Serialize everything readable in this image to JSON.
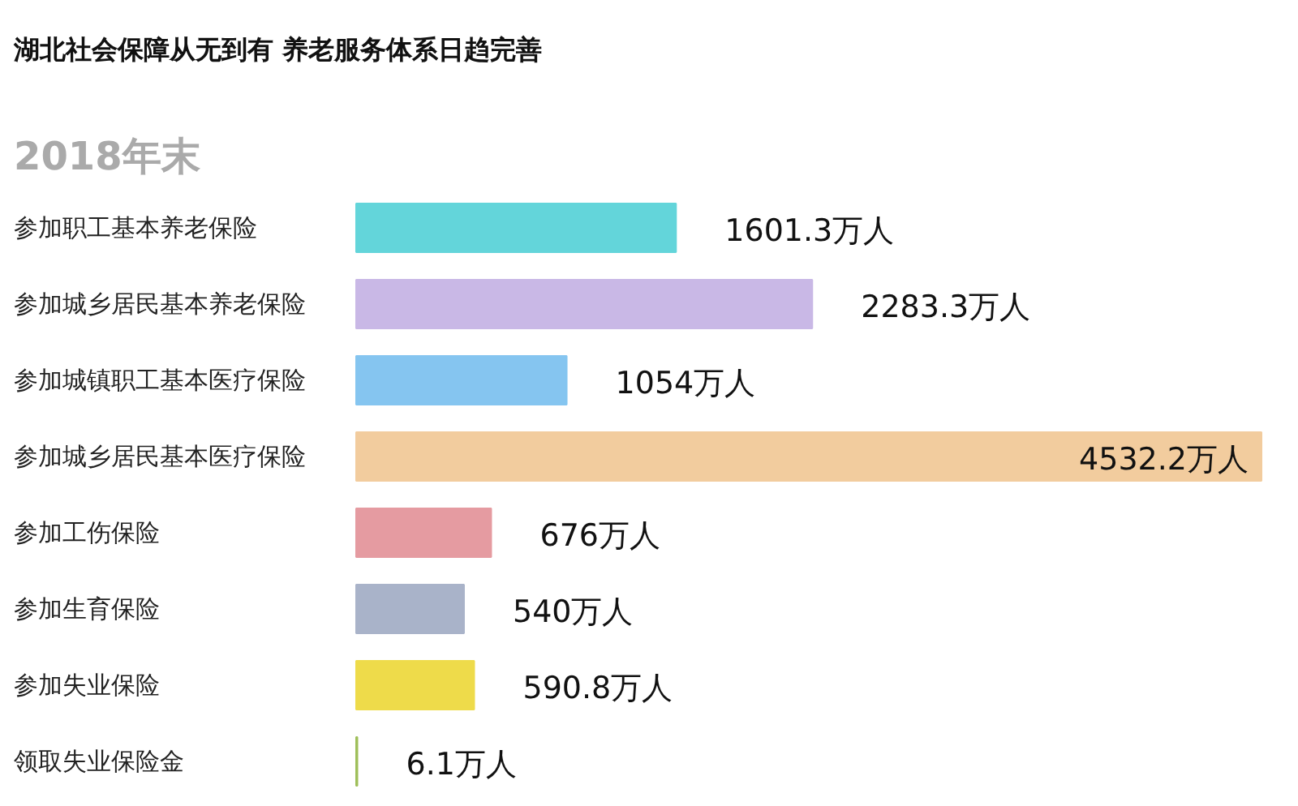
{
  "chart_data": {
    "type": "bar",
    "orientation": "horizontal",
    "title": "湖北社会保障从无到有 养老服务体系日趋完善",
    "subtitle": "2018年末",
    "categories": [
      "参加职工基本养老保险",
      "参加城乡居民基本养老保险",
      "参加城镇职工基本医疗保险",
      "参加城乡居民基本医疗保险",
      "参加工伤保险",
      "参加生育保险",
      "参加失业保险",
      "领取失业保险金"
    ],
    "values": [
      1601.3,
      2283.3,
      1054,
      4532.2,
      676,
      540,
      590.8,
      6.1
    ],
    "colors": [
      "#63d5da",
      "#c9b8e6",
      "#85c5f0",
      "#f2cc9e",
      "#e59ba1",
      "#a9b3c9",
      "#eedb4a",
      "#9fbf5a"
    ],
    "value_labels": [
      "1601.3万人",
      "2283.3万人",
      "1054万人",
      "4532.2万人",
      "676万人",
      "540万人",
      "590.8万人",
      "6.1万人"
    ]
  }
}
